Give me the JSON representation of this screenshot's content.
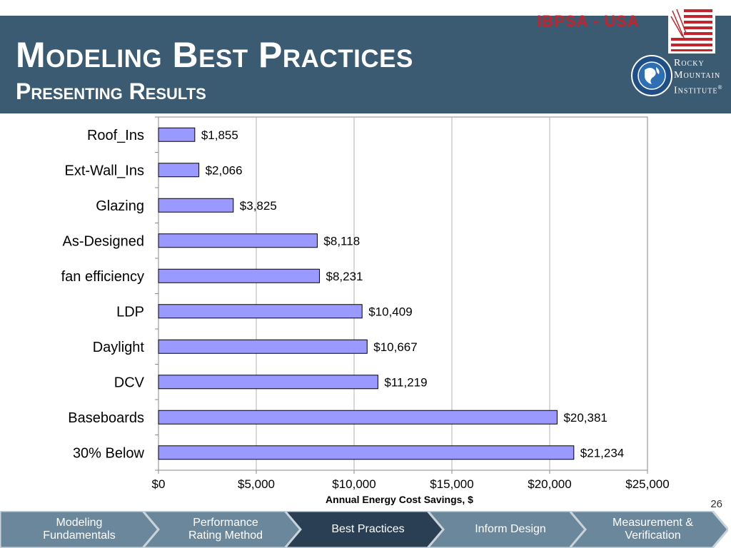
{
  "header": {
    "title": "Modeling Best Practices",
    "subtitle": "Presenting Results",
    "org_label": "IBPSA - USA",
    "rmi_lines": [
      "Rocky",
      "Mountain",
      "Institute"
    ],
    "rmi_trademark": "®"
  },
  "chart_data": {
    "type": "bar",
    "orientation": "horizontal",
    "categories": [
      "Roof_Ins",
      "Ext-Wall_Ins",
      "Glazing",
      "As-Designed",
      "fan efficiency",
      "LDP",
      "Daylight",
      "DCV",
      "Baseboards",
      "30% Below"
    ],
    "values": [
      1855,
      2066,
      3825,
      8118,
      8231,
      10409,
      10667,
      11219,
      20381,
      21234
    ],
    "data_labels": [
      "$1,855",
      "$2,066",
      "$3,825",
      "$8,118",
      "$8,231",
      "$10,409",
      "$10,667",
      "$11,219",
      "$20,381",
      "$21,234"
    ],
    "xlabel": "Annual Energy Cost Savings, $",
    "xlim": [
      0,
      25000
    ],
    "x_ticks": [
      0,
      5000,
      10000,
      15000,
      20000,
      25000
    ],
    "x_tick_labels": [
      "$0",
      "$5,000",
      "$10,000",
      "$15,000",
      "$20,000",
      "$25,000"
    ],
    "grid": "vertical",
    "bar_color": "#9999ff"
  },
  "page_number": "26",
  "footer": {
    "tabs": [
      {
        "label": "Modeling\nFundamentals",
        "active": false
      },
      {
        "label": "Performance\nRating Method",
        "active": false
      },
      {
        "label": "Best Practices",
        "active": true
      },
      {
        "label": "Inform Design",
        "active": false
      },
      {
        "label": "Measurement &\nVerification",
        "active": false
      }
    ]
  },
  "colors": {
    "header_bg": "#3b5b73",
    "org_red": "#c4242b",
    "nav_active": "#2a3f53",
    "nav_inactive": "#6b879b"
  }
}
